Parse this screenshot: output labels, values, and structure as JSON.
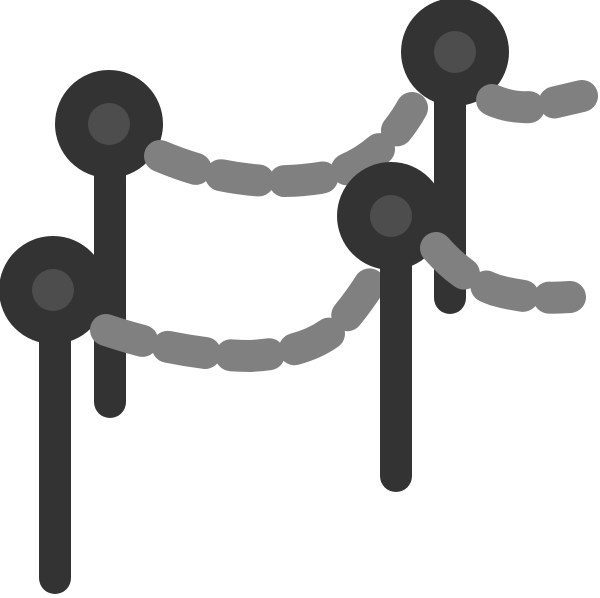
{
  "icon": {
    "name": "rope-barrier-stanchions-icon",
    "colors": {
      "post": "#333333",
      "knob_center": "#4d4d4d",
      "rope": "#808080",
      "background": "#ffffff"
    }
  }
}
